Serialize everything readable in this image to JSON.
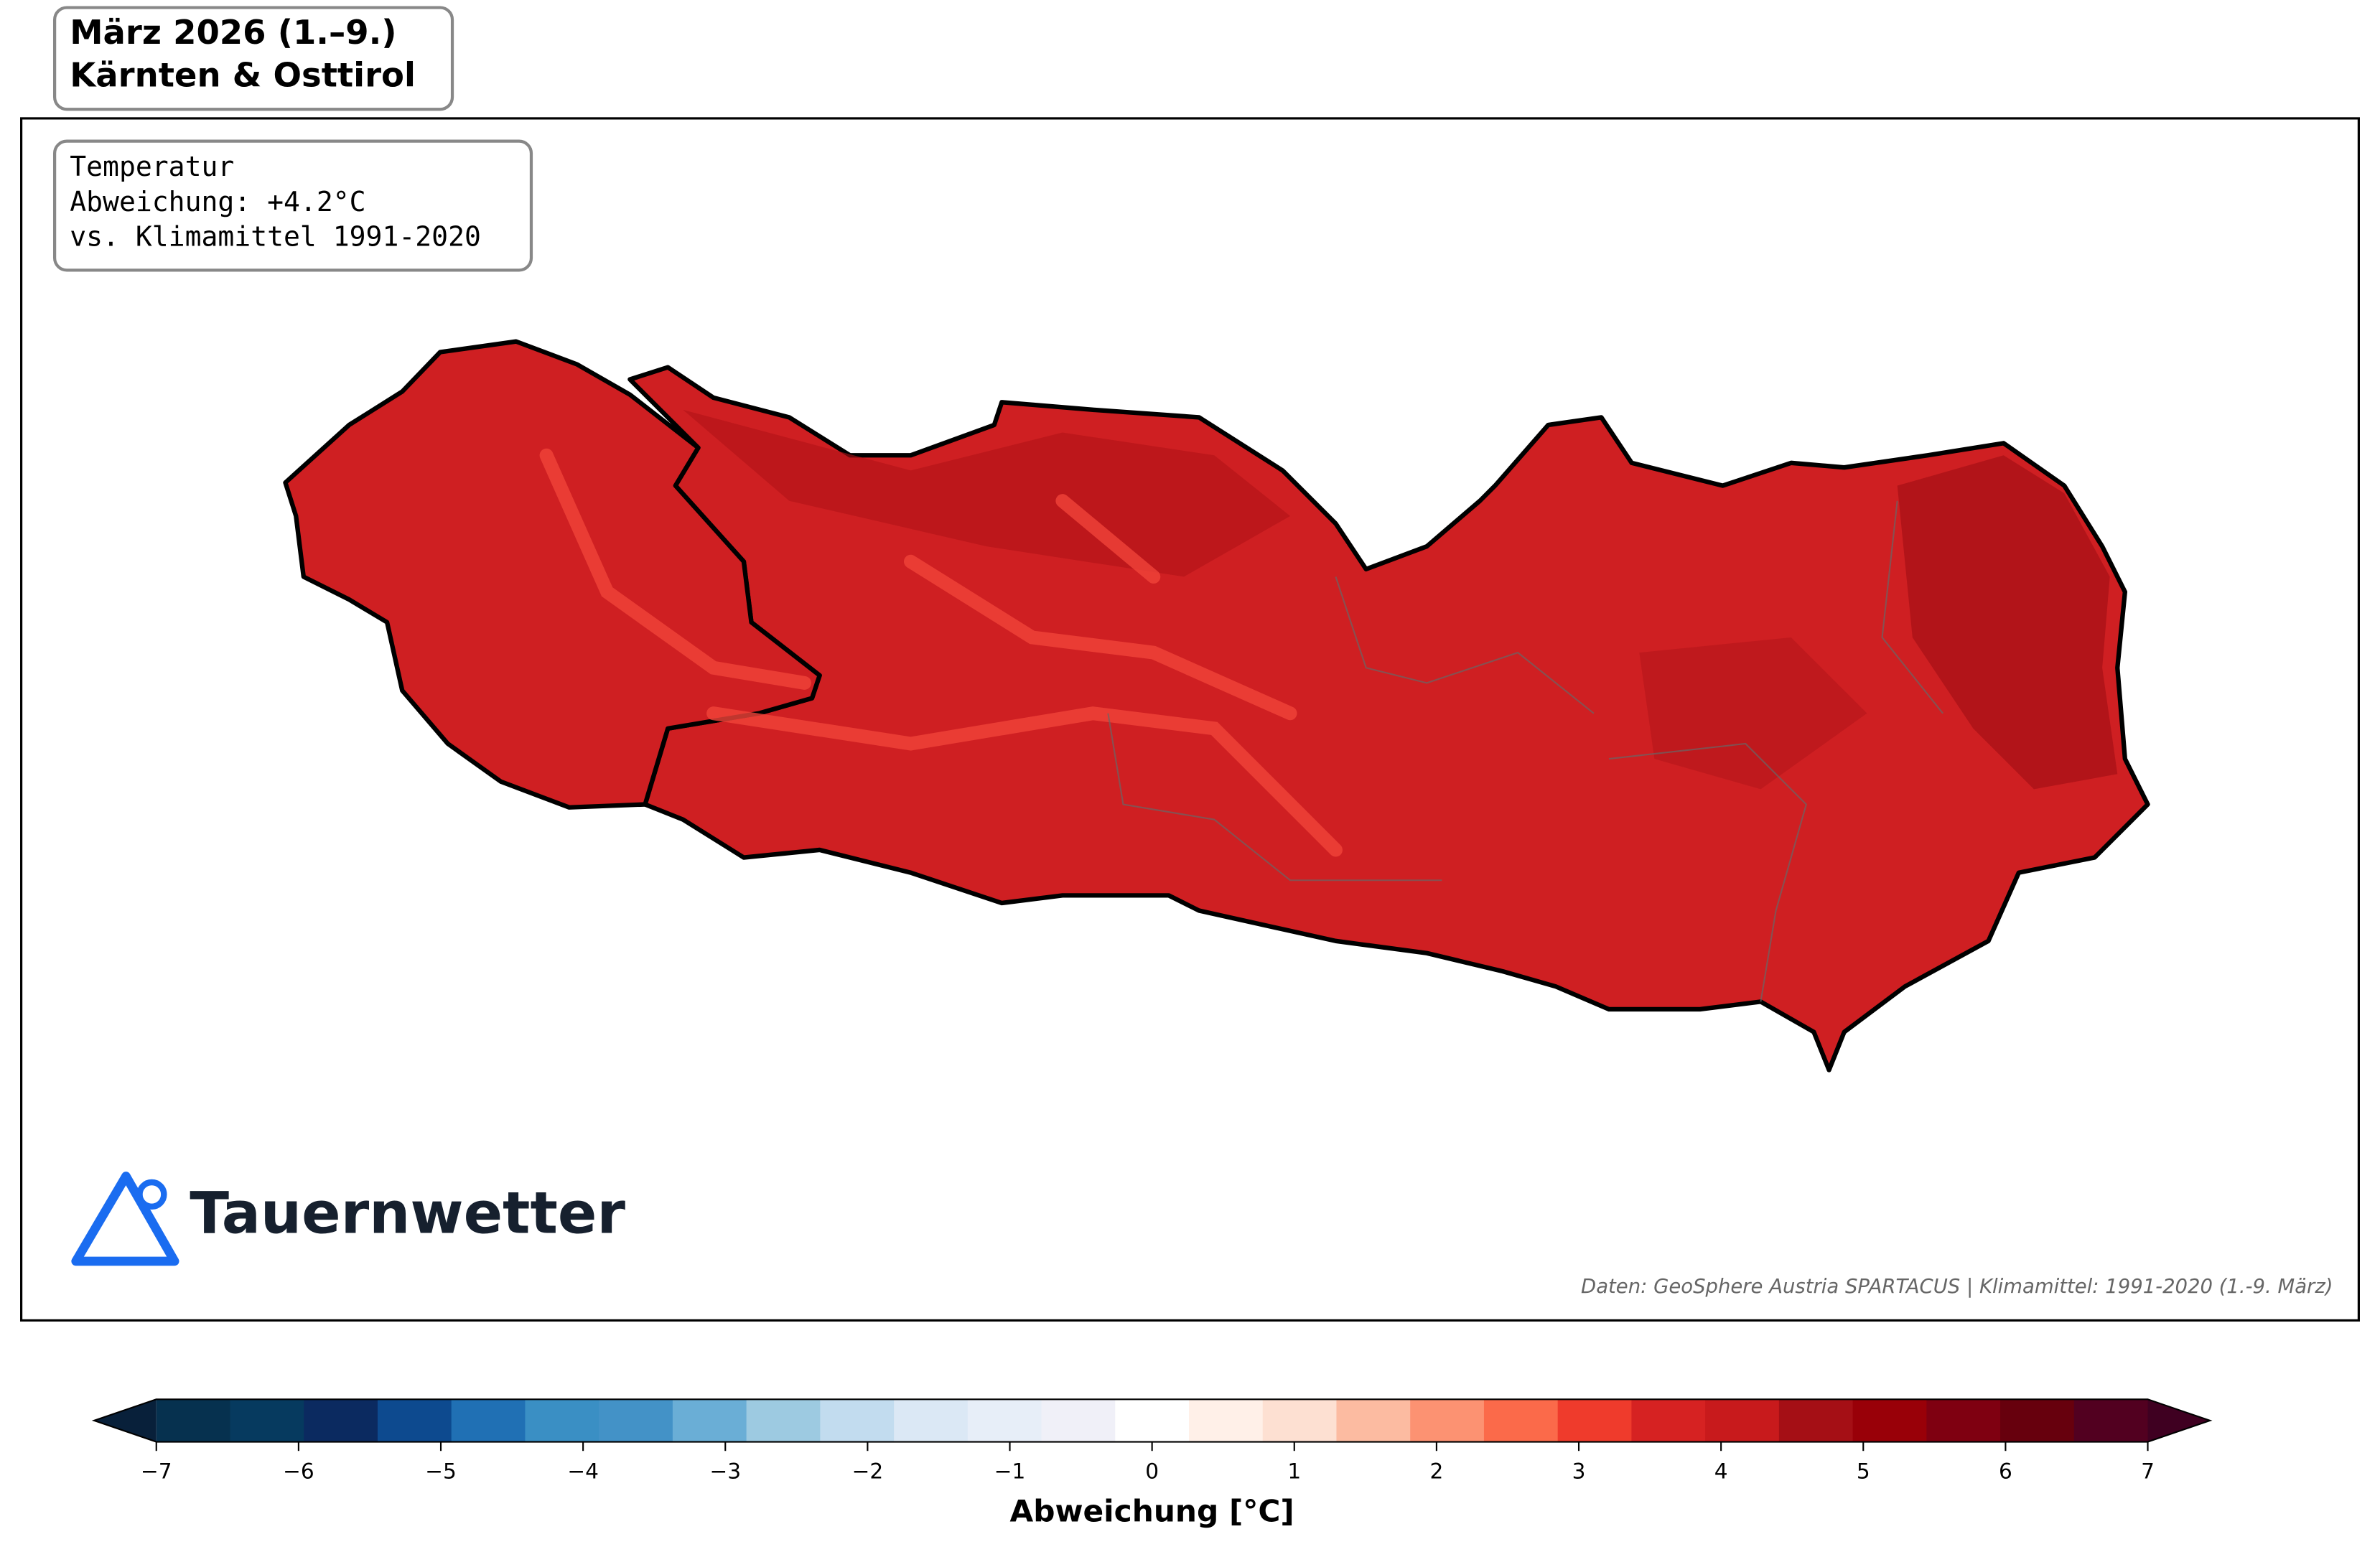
{
  "chart_data": {
    "type": "map",
    "title": [
      "März 2026 (1.–9.)",
      "Kärnten & Osttirol"
    ],
    "info": [
      "Temperatur",
      "Abweichung: +4.2°C",
      "vs. Klimamittel 1991-2020"
    ],
    "logo": "Tauernwetter",
    "source": "Daten: GeoSphere Austria SPARTACUS | Klimamittel: 1991-2020 (1.-9. März)",
    "region_color": "#cf1f22",
    "colorbar": {
      "label": "Abweichung [°C]",
      "xlim": [
        -7,
        7
      ],
      "xticks": [
        {
          "value": -7,
          "label": "−7"
        },
        {
          "value": -6,
          "label": "−6"
        },
        {
          "value": -5,
          "label": "−5"
        },
        {
          "value": -4,
          "label": "−4"
        },
        {
          "value": -3,
          "label": "−3"
        },
        {
          "value": -2,
          "label": "−2"
        },
        {
          "value": -1,
          "label": "−1"
        },
        0,
        1,
        2,
        3,
        4,
        5,
        6,
        7
      ],
      "colors": [
        "#06314f",
        "#063a5f",
        "#0b2a60",
        "#0d4a8f",
        "#2070b4",
        "#3a8fc4",
        "#4392c7",
        "#6aaed6",
        "#9dcae1",
        "#c2dcef",
        "#dbe8f5",
        "#e7eef8",
        "#f0f0f8",
        "#ffffff",
        "#fff0e8",
        "#fde0d2",
        "#fcbba1",
        "#fc9272",
        "#fb6a4a",
        "#ef3b2c",
        "#d62222",
        "#c81a1c",
        "#a50f15",
        "#990008",
        "#7f0011",
        "#67000d",
        "#520020"
      ],
      "under_color": "#08203a",
      "over_color": "#3f0021"
    }
  }
}
